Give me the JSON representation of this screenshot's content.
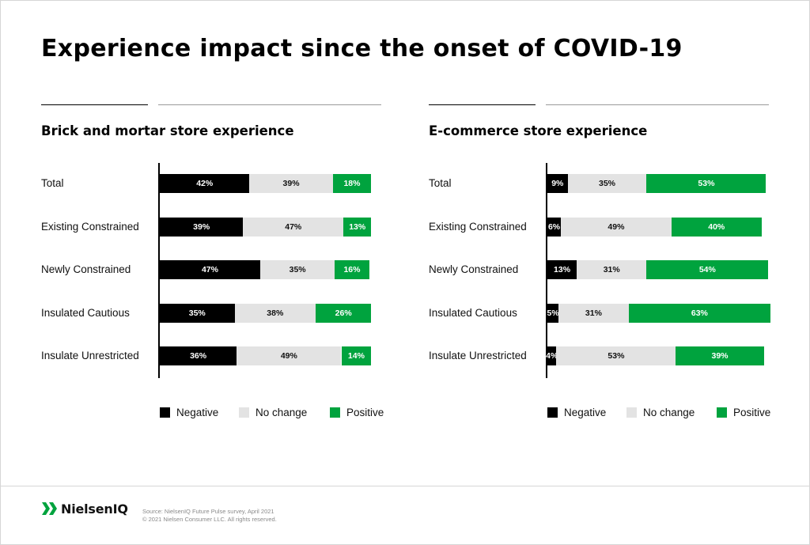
{
  "title": "Experience impact since the onset of COVID-19",
  "colors": {
    "negative": "#000000",
    "no_change": "#e3e3e3",
    "positive": "#00a33e"
  },
  "chart_data": [
    {
      "type": "bar",
      "stacked": true,
      "orientation": "horizontal",
      "title": "Brick and mortar store experience",
      "categories": [
        "Total",
        "Existing Constrained",
        "Newly Constrained",
        "Insulated Cautious",
        "Insulate Unrestricted"
      ],
      "series": [
        {
          "name": "Negative",
          "values": [
            42,
            39,
            47,
            35,
            36
          ]
        },
        {
          "name": "No change",
          "values": [
            39,
            47,
            35,
            38,
            49
          ]
        },
        {
          "name": "Positive",
          "values": [
            18,
            13,
            16,
            26,
            14
          ]
        }
      ],
      "value_suffix": "%",
      "legend": [
        "Negative",
        "No change",
        "Positive"
      ],
      "legend_position": "bottom"
    },
    {
      "type": "bar",
      "stacked": true,
      "orientation": "horizontal",
      "title": "E-commerce store experience",
      "categories": [
        "Total",
        "Existing Constrained",
        "Newly Constrained",
        "Insulated Cautious",
        "Insulate Unrestricted"
      ],
      "series": [
        {
          "name": "Negative",
          "values": [
            9,
            6,
            13,
            5,
            4
          ]
        },
        {
          "name": "No change",
          "values": [
            35,
            49,
            31,
            31,
            53
          ]
        },
        {
          "name": "Positive",
          "values": [
            53,
            40,
            54,
            63,
            39
          ]
        }
      ],
      "value_suffix": "%",
      "legend": [
        "Negative",
        "No change",
        "Positive"
      ],
      "legend_position": "bottom"
    }
  ],
  "footer": {
    "logo_text": "NielsenIQ",
    "source_line": "Source: NielsenIQ Future Pulse survey, April 2021",
    "copyright_line": "© 2021 Nielsen Consumer LLC. All rights reserved."
  }
}
